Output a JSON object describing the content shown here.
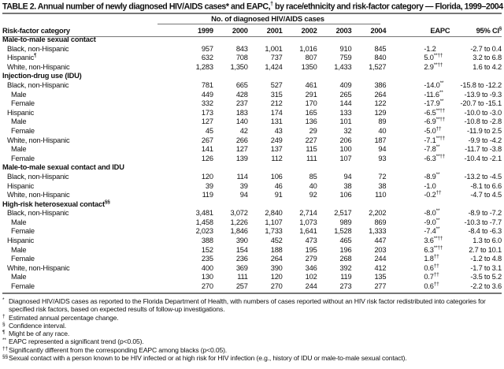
{
  "title": {
    "text": "TABLE 2. Annual number of newly diagnosed HIV/AIDS cases* and EAPC,",
    "sup": "†",
    "rest": " by race/ethnicity and risk-factor category — Florida, 1999–2004"
  },
  "header": {
    "group_label": "No. of diagnosed HIV/AIDS cases",
    "risk_label": "Risk-factor category",
    "years": [
      "1999",
      "2000",
      "2001",
      "2002",
      "2003",
      "2004"
    ],
    "eapc": "EAPC",
    "ci": "95% CI",
    "ci_sup": "§"
  },
  "rows": [
    {
      "label": "Male-to-male sexual contact",
      "group": true
    },
    {
      "label": "Black, non-Hispanic",
      "indent": 1,
      "values": [
        "957",
        "843",
        "1,001",
        "1,016",
        "910",
        "845"
      ],
      "eapc": "-1.2",
      "eapc_sup": "",
      "ci": "-2.7 to 0.4"
    },
    {
      "label": "Hispanic",
      "label_sup": "¶",
      "indent": 1,
      "values": [
        "632",
        "708",
        "737",
        "807",
        "759",
        "840"
      ],
      "eapc": "5.0",
      "eapc_sup": "**††",
      "ci": "3.2 to 6.8"
    },
    {
      "label": "White, non-Hispanic",
      "indent": 1,
      "values": [
        "1,283",
        "1,350",
        "1,424",
        "1350",
        "1,433",
        "1,527"
      ],
      "eapc": "2.9",
      "eapc_sup": "**††",
      "ci": "1.6 to 4.2"
    },
    {
      "label": "Injection-drug use (IDU)",
      "group": true
    },
    {
      "label": "Black, non-Hispanic",
      "indent": 1,
      "values": [
        "781",
        "665",
        "527",
        "461",
        "409",
        "386"
      ],
      "eapc": "-14.0",
      "eapc_sup": "**",
      "ci": "-15.8 to -12.2"
    },
    {
      "label": "Male",
      "indent": 2,
      "values": [
        "449",
        "428",
        "315",
        "291",
        "265",
        "264"
      ],
      "eapc": "-11.6",
      "eapc_sup": "**",
      "ci": "-13.9 to -9.3"
    },
    {
      "label": "Female",
      "indent": 2,
      "values": [
        "332",
        "237",
        "212",
        "170",
        "144",
        "122"
      ],
      "eapc": "-17.9",
      "eapc_sup": "**",
      "ci": "-20.7 to -15.1"
    },
    {
      "label": "Hispanic",
      "indent": 1,
      "values": [
        "173",
        "183",
        "174",
        "165",
        "133",
        "129"
      ],
      "eapc": "-6.5",
      "eapc_sup": "**††",
      "ci": "-10.0 to -3.0"
    },
    {
      "label": "Male",
      "indent": 2,
      "values": [
        "127",
        "140",
        "131",
        "136",
        "101",
        "89"
      ],
      "eapc": "-6.9",
      "eapc_sup": "**††",
      "ci": "-10.8 to -2.8"
    },
    {
      "label": "Female",
      "indent": 2,
      "values": [
        "45",
        "42",
        "43",
        "29",
        "32",
        "40"
      ],
      "eapc": "-5.0",
      "eapc_sup": "††",
      "ci": "-11.9 to 2.5"
    },
    {
      "label": "White, non-Hispanic",
      "indent": 1,
      "values": [
        "267",
        "266",
        "249",
        "227",
        "206",
        "187"
      ],
      "eapc": "-7.1",
      "eapc_sup": "**††",
      "ci": "-9.9 to -4.2"
    },
    {
      "label": "Male",
      "indent": 2,
      "values": [
        "141",
        "127",
        "137",
        "115",
        "100",
        "94"
      ],
      "eapc": "-7.8",
      "eapc_sup": "**",
      "ci": "-11.7 to -3.8"
    },
    {
      "label": "Female",
      "indent": 2,
      "values": [
        "126",
        "139",
        "112",
        "111",
        "107",
        "93"
      ],
      "eapc": "-6.3",
      "eapc_sup": "**††",
      "ci": "-10.4 to -2.1"
    },
    {
      "label": "Male-to-male sexual contact and IDU",
      "group": true
    },
    {
      "label": "Black, non-Hispanic",
      "indent": 1,
      "values": [
        "120",
        "114",
        "106",
        "85",
        "94",
        "72"
      ],
      "eapc": "-8.9",
      "eapc_sup": "**",
      "ci": "-13.2 to -4.5"
    },
    {
      "label": "Hispanic",
      "indent": 1,
      "values": [
        "39",
        "39",
        "46",
        "40",
        "38",
        "38"
      ],
      "eapc": "-1.0",
      "eapc_sup": "",
      "ci": "-8.1 to 6.6"
    },
    {
      "label": "White, non-Hispanic",
      "indent": 1,
      "values": [
        "119",
        "94",
        "91",
        "92",
        "106",
        "110"
      ],
      "eapc": "-0.2",
      "eapc_sup": "††",
      "ci": "-4.7 to 4.5"
    },
    {
      "label": "High-risk heterosexual contact",
      "label_sup": "§§",
      "group": true
    },
    {
      "label": "Black, non-Hispanic",
      "indent": 1,
      "values": [
        "3,481",
        "3,072",
        "2,840",
        "2,714",
        "2,517",
        "2,202"
      ],
      "eapc": "-8.0",
      "eapc_sup": "**",
      "ci": "-8.9 to -7.2"
    },
    {
      "label": "Male",
      "indent": 2,
      "values": [
        "1,458",
        "1,226",
        "1,107",
        "1,073",
        "989",
        "869"
      ],
      "eapc": "-9.0",
      "eapc_sup": "**",
      "ci": "-10.3 to -7.7"
    },
    {
      "label": "Female",
      "indent": 2,
      "values": [
        "2,023",
        "1,846",
        "1,733",
        "1,641",
        "1,528",
        "1,333"
      ],
      "eapc": "-7.4",
      "eapc_sup": "**",
      "ci": "-8.4 to -6.3"
    },
    {
      "label": "Hispanic",
      "indent": 1,
      "values": [
        "388",
        "390",
        "452",
        "473",
        "465",
        "447"
      ],
      "eapc": "3.6",
      "eapc_sup": "**††",
      "ci": "1.3 to 6.0"
    },
    {
      "label": "Male",
      "indent": 2,
      "values": [
        "152",
        "154",
        "188",
        "195",
        "196",
        "203"
      ],
      "eapc": "6.3",
      "eapc_sup": "**††",
      "ci": "2.7 to 10.1"
    },
    {
      "label": "Female",
      "indent": 2,
      "values": [
        "235",
        "236",
        "264",
        "279",
        "268",
        "244"
      ],
      "eapc": "1.8",
      "eapc_sup": "††",
      "ci": "-1.2 to 4.8"
    },
    {
      "label": "White, non-Hispanic",
      "indent": 1,
      "values": [
        "400",
        "369",
        "390",
        "346",
        "392",
        "412"
      ],
      "eapc": "0.6",
      "eapc_sup": "††",
      "ci": "-1.7 to 3.1"
    },
    {
      "label": "Male",
      "indent": 2,
      "values": [
        "130",
        "111",
        "120",
        "102",
        "119",
        "135"
      ],
      "eapc": "0.7",
      "eapc_sup": "††",
      "ci": "-3.5 to 5.2"
    },
    {
      "label": "Female",
      "indent": 2,
      "values": [
        "270",
        "257",
        "270",
        "244",
        "273",
        "277"
      ],
      "eapc": "0.6",
      "eapc_sup": "††",
      "ci": "-2.2 to 3.6"
    }
  ],
  "footnotes": [
    {
      "mark": "*",
      "text": "Diagnosed HIV/AIDS cases as reported to the Florida Department of Health, with numbers of cases reported without an HIV risk factor redistributed into categories for specified risk factors, based on expected results of follow-up investigations."
    },
    {
      "mark": "†",
      "text": "Estimated annual percentage change."
    },
    {
      "mark": "§",
      "text": "Confidence interval."
    },
    {
      "mark": "¶",
      "text": "Might be of any race."
    },
    {
      "mark": "**",
      "text": "EAPC represented a significant trend (p<0.05)."
    },
    {
      "mark": "††",
      "text": "Significantly different from the corresponding EAPC among blacks (p<0.05)."
    },
    {
      "mark": "§§",
      "text": "Sexual contact with a person known to be HIV infected or at high risk for HIV infection (e.g., history of IDU or male-to-male sexual contact)."
    }
  ]
}
